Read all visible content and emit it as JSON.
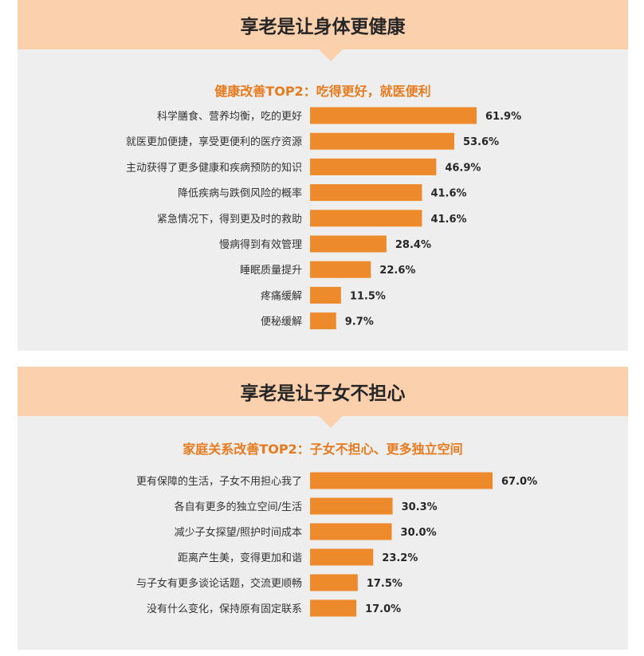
{
  "colors": {
    "banner": "#fbd1ad",
    "subtitle": "#e87a1e",
    "bar": "#ed8a2b",
    "panel": "#eeeeee"
  },
  "chart_data": [
    {
      "type": "bar",
      "orientation": "horizontal",
      "title": "享老是让身体更健康",
      "subtitle": "健康改善TOP2：吃得更好，就医便利",
      "categories": [
        "科学膳食、营养均衡，吃的更好",
        "就医更加便捷，享受更便利的医疗资源",
        "主动获得了更多健康和疾病预防的知识",
        "降低疾病与跌倒风险的概率",
        "紧急情况下，得到更及时的救助",
        "慢病得到有效管理",
        "睡眠质量提升",
        "疼痛缓解",
        "便秘缓解"
      ],
      "values": [
        61.9,
        53.6,
        46.9,
        41.6,
        41.6,
        28.4,
        22.6,
        11.5,
        9.7
      ],
      "value_labels": [
        "61.9%",
        "53.6%",
        "46.9%",
        "41.6%",
        "41.6%",
        "28.4%",
        "22.6%",
        "11.5%",
        "9.7%"
      ]
    },
    {
      "type": "bar",
      "orientation": "horizontal",
      "title": "享老是让子女不担心",
      "subtitle": "家庭关系改善TOP2：子女不担心、更多独立空间",
      "categories": [
        "更有保障的生活，子女不用担心我了",
        "各自有更多的独立空间/生活",
        "减少子女探望/照护时间成本",
        "距离产生美，变得更加和谐",
        "与子女有更多谈论话题，交流更顺畅",
        "没有什么变化，保持原有固定联系"
      ],
      "values": [
        67.0,
        30.3,
        30.0,
        23.2,
        17.5,
        17.0
      ],
      "value_labels": [
        "67.0%",
        "30.3%",
        "30.0%",
        "23.2%",
        "17.5%",
        "17.0%"
      ]
    }
  ]
}
